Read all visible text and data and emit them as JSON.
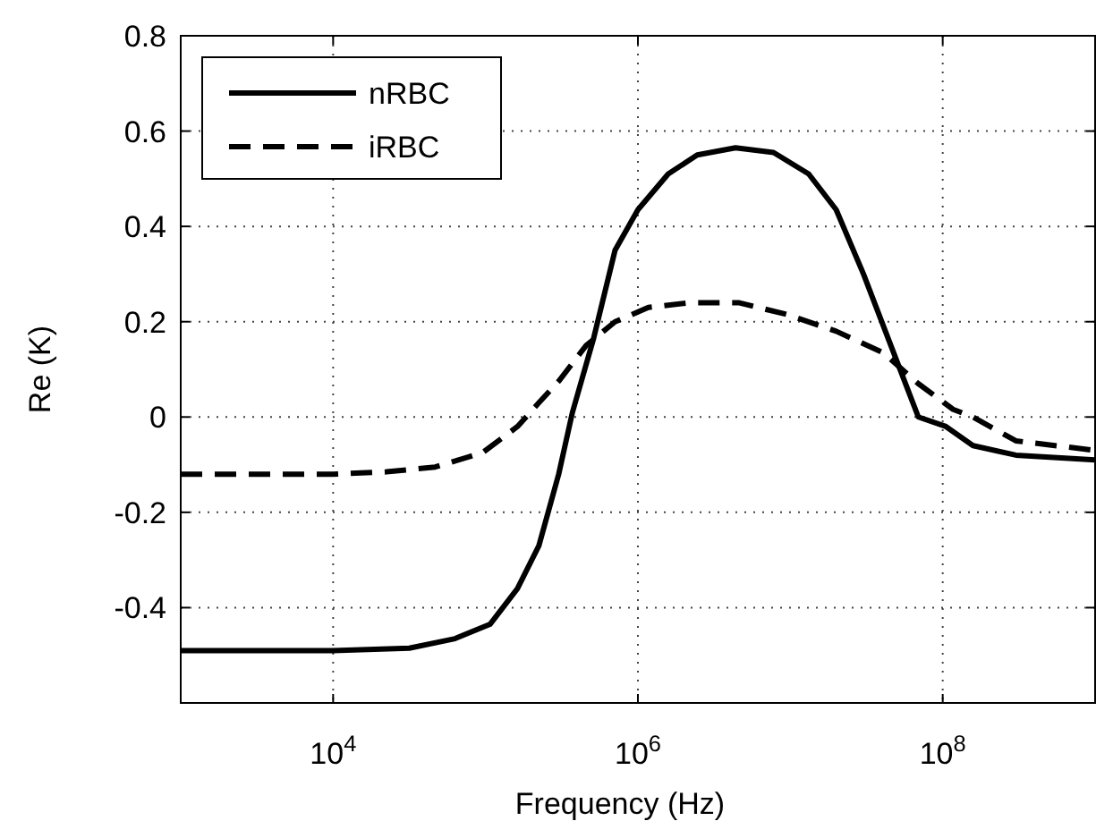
{
  "chart_data": {
    "type": "line",
    "xlabel": "Frequency (Hz)",
    "ylabel": "Re (K)",
    "log": "x",
    "xlim": [
      1000,
      1000000000
    ],
    "xticks": [
      {
        "value": 10000,
        "label": "10$^{4}$"
      },
      {
        "value": 1000000,
        "label": "10$^{6}$"
      },
      {
        "value": 100000000,
        "label": "10$^{8}$"
      }
    ],
    "ylim": [
      -0.6,
      0.8
    ],
    "yticks": [
      {
        "value": -0.4,
        "label": "-0.4"
      },
      {
        "value": -0.2,
        "label": "-0.2"
      },
      0,
      0.2,
      0.4,
      0.6,
      0.8
    ],
    "grid": true,
    "legend": "top left",
    "series": [
      {
        "name": "nRBC",
        "color": "#000000",
        "line_style": "solid",
        "x": [
          1000,
          10000,
          31600,
          63100,
          107000,
          162000,
          224000,
          302000,
          372000,
          513000,
          708000,
          1000000,
          1580000,
          2450000,
          4370000,
          7760000,
          13200000,
          20000000,
          30200000,
          45700000,
          69200000,
          105000000,
          158000000,
          302000000,
          1000000000
        ],
        "values": [
          -0.49,
          -0.49,
          -0.485,
          -0.465,
          -0.435,
          -0.36,
          -0.27,
          -0.12,
          0.01,
          0.166,
          0.35,
          0.435,
          0.51,
          0.55,
          0.565,
          0.555,
          0.51,
          0.435,
          0.3,
          0.15,
          0.0,
          -0.02,
          -0.06,
          -0.08,
          -0.09
        ]
      },
      {
        "name": "iRBC",
        "color": "#000000",
        "line_style": "dashed",
        "x": [
          1000,
          10000,
          22400,
          46800,
          95500,
          162000,
          224000,
          302000,
          457000,
          708000,
          1170000,
          2190000,
          4570000,
          9550000,
          20000000,
          40700000,
          69200000,
          117000000,
          158000000,
          302000000,
          1000000000
        ],
        "values": [
          -0.12,
          -0.12,
          -0.115,
          -0.105,
          -0.075,
          -0.02,
          0.03,
          0.075,
          0.15,
          0.2,
          0.23,
          0.24,
          0.24,
          0.215,
          0.18,
          0.135,
          0.07,
          0.016,
          0.0,
          -0.05,
          -0.07
        ]
      }
    ]
  }
}
